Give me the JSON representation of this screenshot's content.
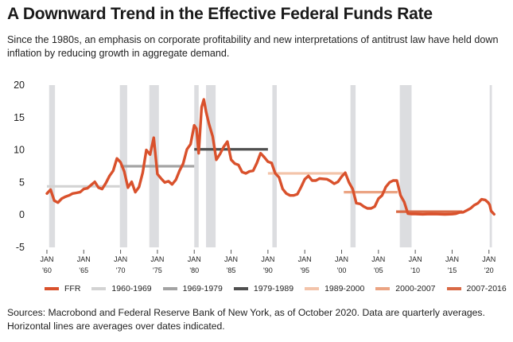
{
  "title": "A Downward Trend in the Effective Federal Funds Rate",
  "subtitle": "Since the 1980s, an emphasis on corporate profitability and new interpretations of antitrust law have held down inflation by reducing growth in aggregate demand.",
  "source": "Sources: Macrobond and Federal Reserve Bank of New York, as of October 2020. Data are quarterly averages. Horizontal lines are averages over dates indicated.",
  "chart_data": {
    "type": "line",
    "xlim": [
      1958.6,
      2022.4
    ],
    "ylim": [
      -5,
      20
    ],
    "yticks": [
      20,
      15,
      10,
      5,
      0,
      -5
    ],
    "xticks": [
      {
        "year": 1960,
        "top": "JAN",
        "bottom": "'60"
      },
      {
        "year": 1965,
        "top": "JAN",
        "bottom": "'65"
      },
      {
        "year": 1970,
        "top": "JAN",
        "bottom": "'70"
      },
      {
        "year": 1975,
        "top": "JAN",
        "bottom": "'75"
      },
      {
        "year": 1980,
        "top": "JAN",
        "bottom": "'80"
      },
      {
        "year": 1985,
        "top": "JAN",
        "bottom": "'85"
      },
      {
        "year": 1990,
        "top": "JAN",
        "bottom": "'90"
      },
      {
        "year": 1995,
        "top": "JAN",
        "bottom": "'95"
      },
      {
        "year": 2000,
        "top": "JAN",
        "bottom": "'00"
      },
      {
        "year": 2005,
        "top": "JAN",
        "bottom": "'05"
      },
      {
        "year": 2010,
        "top": "JAN",
        "bottom": "'10"
      },
      {
        "year": 2015,
        "top": "JAN",
        "bottom": "'15"
      },
      {
        "year": 2020,
        "top": "JAN",
        "bottom": "'20"
      }
    ],
    "recessions": [
      [
        1960.3,
        1961.1
      ],
      [
        1969.9,
        1970.9
      ],
      [
        1973.9,
        1975.2
      ],
      [
        1980.0,
        1980.6
      ],
      [
        1981.6,
        1982.9
      ],
      [
        1990.6,
        1991.2
      ],
      [
        2001.2,
        2001.9
      ],
      [
        2007.9,
        2009.5
      ],
      [
        2020.1,
        2020.4
      ]
    ],
    "series": [
      {
        "name": "FFR",
        "color": "#d9512c",
        "x": [
          1960.0,
          1960.5,
          1961.0,
          1961.5,
          1962.0,
          1962.5,
          1963.0,
          1963.5,
          1964.0,
          1964.5,
          1965.0,
          1965.5,
          1966.0,
          1966.5,
          1967.0,
          1967.5,
          1968.0,
          1968.5,
          1969.0,
          1969.5,
          1970.0,
          1970.5,
          1971.0,
          1971.5,
          1972.0,
          1972.5,
          1973.0,
          1973.5,
          1974.0,
          1974.5,
          1975.0,
          1975.5,
          1976.0,
          1976.5,
          1977.0,
          1977.5,
          1978.0,
          1978.5,
          1979.0,
          1979.5,
          1980.0,
          1980.3,
          1980.6,
          1981.0,
          1981.3,
          1981.6,
          1982.0,
          1982.5,
          1983.0,
          1983.5,
          1984.0,
          1984.5,
          1985.0,
          1985.5,
          1986.0,
          1986.5,
          1987.0,
          1987.5,
          1988.0,
          1988.5,
          1989.0,
          1989.5,
          1990.0,
          1990.5,
          1991.0,
          1991.5,
          1992.0,
          1992.5,
          1993.0,
          1993.5,
          1994.0,
          1994.5,
          1995.0,
          1995.5,
          1996.0,
          1996.5,
          1997.0,
          1998.0,
          1998.5,
          1999.0,
          1999.5,
          2000.0,
          2000.5,
          2001.0,
          2001.5,
          2002.0,
          2002.5,
          2003.0,
          2003.5,
          2004.0,
          2004.5,
          2005.0,
          2005.5,
          2006.0,
          2006.5,
          2007.0,
          2007.5,
          2008.0,
          2008.5,
          2009.0,
          2009.5,
          2010.0,
          2011.0,
          2012.0,
          2013.0,
          2014.0,
          2015.0,
          2015.5,
          2016.0,
          2016.5,
          2017.0,
          2017.5,
          2018.0,
          2018.5,
          2019.0,
          2019.5,
          2019.9,
          2020.1,
          2020.3,
          2020.7
        ],
        "y": [
          3.3,
          3.9,
          2.2,
          1.9,
          2.5,
          2.8,
          3.0,
          3.3,
          3.4,
          3.5,
          4.0,
          4.1,
          4.6,
          5.1,
          4.2,
          4.0,
          4.9,
          6.0,
          6.8,
          8.7,
          8.1,
          6.7,
          4.2,
          5.1,
          3.5,
          4.3,
          6.5,
          10.0,
          9.3,
          11.9,
          6.3,
          5.6,
          5.0,
          5.2,
          4.7,
          5.4,
          6.8,
          7.9,
          10.1,
          10.9,
          13.8,
          13.3,
          9.5,
          16.6,
          17.8,
          15.9,
          14.0,
          12.1,
          8.5,
          9.4,
          10.5,
          11.3,
          8.5,
          7.9,
          7.7,
          6.6,
          6.4,
          6.7,
          6.8,
          8.0,
          9.5,
          8.9,
          8.2,
          8.0,
          6.4,
          5.8,
          4.0,
          3.3,
          3.0,
          3.0,
          3.2,
          4.3,
          5.5,
          6.0,
          5.3,
          5.3,
          5.6,
          5.5,
          5.2,
          4.8,
          5.1,
          5.9,
          6.5,
          5.0,
          4.0,
          1.8,
          1.7,
          1.3,
          1.0,
          1.0,
          1.3,
          2.5,
          3.0,
          4.3,
          5.0,
          5.3,
          5.3,
          3.0,
          2.0,
          0.2,
          0.15,
          0.15,
          0.1,
          0.15,
          0.12,
          0.09,
          0.12,
          0.18,
          0.38,
          0.4,
          0.7,
          1.0,
          1.5,
          1.8,
          2.4,
          2.3,
          1.9,
          1.55,
          0.6,
          0.1
        ]
      }
    ],
    "averages": [
      {
        "name": "1960-1969",
        "color": "#d3d3d3",
        "from": 1960.0,
        "to": 1969.9,
        "value": 4.4
      },
      {
        "name": "1969-1979",
        "color": "#a3a3a3",
        "from": 1970.0,
        "to": 1980.0,
        "value": 7.5
      },
      {
        "name": "1979-1989",
        "color": "#505050",
        "from": 1980.0,
        "to": 1990.0,
        "value": 10.1
      },
      {
        "name": "1989-2000",
        "color": "#f3c4aa",
        "from": 1990.0,
        "to": 2000.2,
        "value": 6.4
      },
      {
        "name": "2000-2007",
        "color": "#eba483",
        "from": 2000.3,
        "to": 2007.6,
        "value": 3.5
      },
      {
        "name": "2007-2016",
        "color": "#d96945",
        "from": 2007.4,
        "to": 2016.4,
        "value": 0.5
      }
    ]
  }
}
